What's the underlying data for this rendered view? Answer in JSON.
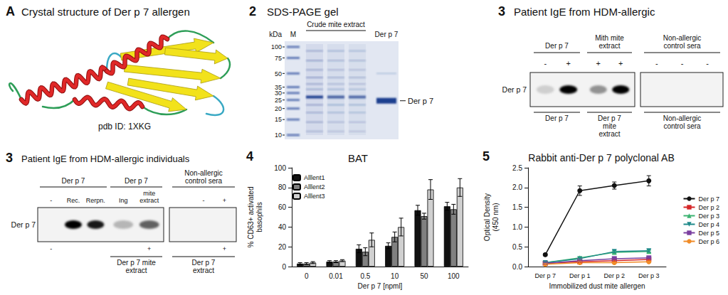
{
  "panels": [
    {
      "kind": "structure",
      "letter": "A",
      "title": "Crystal structure of Der p 7 allergen",
      "caption": "pdb ID: 1XKG"
    },
    {
      "kind": "gel",
      "letter": "2",
      "title": "SDS-PAGE gel",
      "unit": "kDa",
      "marker_lane": "M",
      "extract_head": "Crude mite extract",
      "protein_lane": "Der p 7",
      "markers": [
        100,
        75,
        50,
        35,
        30,
        25,
        20,
        15,
        10
      ],
      "band_label": "Der p 7"
    },
    {
      "kind": "blot",
      "letter": "3",
      "title": "Patient IgE from HDM-allergic",
      "row_label": "Der p 7",
      "groups": [
        {
          "head": "Der p 7",
          "lanes": [
            {
              "top": "-"
            },
            {
              "top": "+"
            }
          ],
          "foot": "Der p 7"
        },
        {
          "head": "Mith mite extract",
          "lanes": [
            {
              "top": "+"
            },
            {
              "top": "+"
            }
          ],
          "foot": "Der p 7 mite extract"
        },
        {
          "head": "Non-allergic control sera",
          "lanes": [
            {
              "top": "-"
            },
            {
              "top": "-"
            },
            {
              "top": "-"
            }
          ],
          "foot": "Non-allergic control sera"
        }
      ]
    },
    {
      "kind": "blot",
      "letter": "3",
      "title": "Patient IgE from HDM-allergic individuals",
      "row_label": "Der p 7",
      "groups": [
        {
          "head": "Der p 7",
          "lanes": [
            {
              "top": "-",
              "bottom": "-"
            },
            {
              "top": "Rec."
            },
            {
              "top": "Rerpn."
            }
          ]
        },
        {
          "head": "Der p 7",
          "lanes": [
            {
              "top": "Ing"
            },
            {
              "top": "mite extract",
              "bottom": "+"
            }
          ],
          "foot": "Der p 7 mite extract"
        },
        {
          "head": "Non-allergic control sera",
          "lanes": [
            {},
            {
              "top": "-"
            },
            {
              "top": "+",
              "bottom": "+"
            }
          ],
          "foot": "Der p 7 extract"
        }
      ]
    },
    {
      "kind": "chart",
      "letter": "4"
    },
    {
      "kind": "chart",
      "letter": "5"
    }
  ],
  "chart_data": [
    {
      "type": "bar",
      "title": "BAT",
      "x_label": "Der p 7 [npml]",
      "y_label": "% CD63+ activated basophils",
      "categories": [
        "0",
        "0.01",
        "0.5",
        "10",
        "50",
        "100"
      ],
      "series": [
        {
          "name": "Alllent1",
          "color": "#111111",
          "values": [
            3,
            5,
            18,
            21,
            57,
            61
          ],
          "errors": [
            1,
            1,
            4,
            3,
            5,
            4
          ]
        },
        {
          "name": "Alllent2",
          "color": "#808080",
          "values": [
            3,
            5,
            15,
            30,
            51,
            58
          ],
          "errors": [
            1,
            1,
            4,
            5,
            3,
            5
          ]
        },
        {
          "name": "Alllent3",
          "color": "#d0d0d0",
          "values": [
            4,
            6,
            27,
            40,
            78,
            80
          ],
          "errors": [
            1,
            1,
            7,
            9,
            10,
            9
          ]
        }
      ],
      "ylim": [
        0,
        100
      ],
      "yticks": [
        0,
        20,
        40,
        60,
        80,
        100
      ],
      "grid": false,
      "legend": "upper left"
    },
    {
      "type": "line",
      "title": "Rabbit anti-Der p 7 polyclonal AB",
      "x_label": "Immobilized dust mite allergen",
      "y_label": "Optical Density (450 nm)",
      "categories": [
        "Der p 7",
        "Der p 1",
        "Der p 2",
        "Der p 3"
      ],
      "series": [
        {
          "name": "Der p 7",
          "color": "#111111",
          "marker": "circle",
          "values": [
            0.3,
            1.92,
            2.05,
            2.17
          ],
          "errors": [
            0.03,
            0.12,
            0.09,
            0.13
          ]
        },
        {
          "name": "Der p 2",
          "color": "#d62728",
          "marker": "square",
          "values": [
            0.08,
            0.12,
            0.15,
            0.18
          ],
          "errors": [
            0.02,
            0.02,
            0.02,
            0.02
          ]
        },
        {
          "name": "Der p 3",
          "color": "#3cb371",
          "marker": "triangle",
          "values": [
            0.1,
            0.22,
            0.36,
            0.38
          ],
          "errors": [
            0.02,
            0.03,
            0.03,
            0.03
          ]
        },
        {
          "name": "Der p 4",
          "color": "#1f8a8a",
          "marker": "triangle_down",
          "values": [
            0.1,
            0.2,
            0.38,
            0.4
          ],
          "errors": [
            0.02,
            0.03,
            0.03,
            0.03
          ]
        },
        {
          "name": "Der p 5",
          "color": "#7b3fa0",
          "marker": "square",
          "values": [
            0.08,
            0.15,
            0.2,
            0.22
          ],
          "errors": [
            0.02,
            0.02,
            0.02,
            0.02
          ]
        },
        {
          "name": "Der p 6",
          "color": "#f08c28",
          "marker": "circle",
          "values": [
            0.06,
            0.1,
            0.1,
            0.12
          ],
          "errors": [
            0.02,
            0.02,
            0.02,
            0.02
          ]
        }
      ],
      "ylim": [
        0,
        2.5
      ],
      "yticks": [
        {
          "value": 0,
          "label": "0.0"
        },
        0.5,
        {
          "value": 1,
          "label": "1.0"
        },
        1.5,
        {
          "value": 2,
          "label": "2.0"
        },
        2.5
      ],
      "grid": false,
      "legend": "right"
    }
  ]
}
